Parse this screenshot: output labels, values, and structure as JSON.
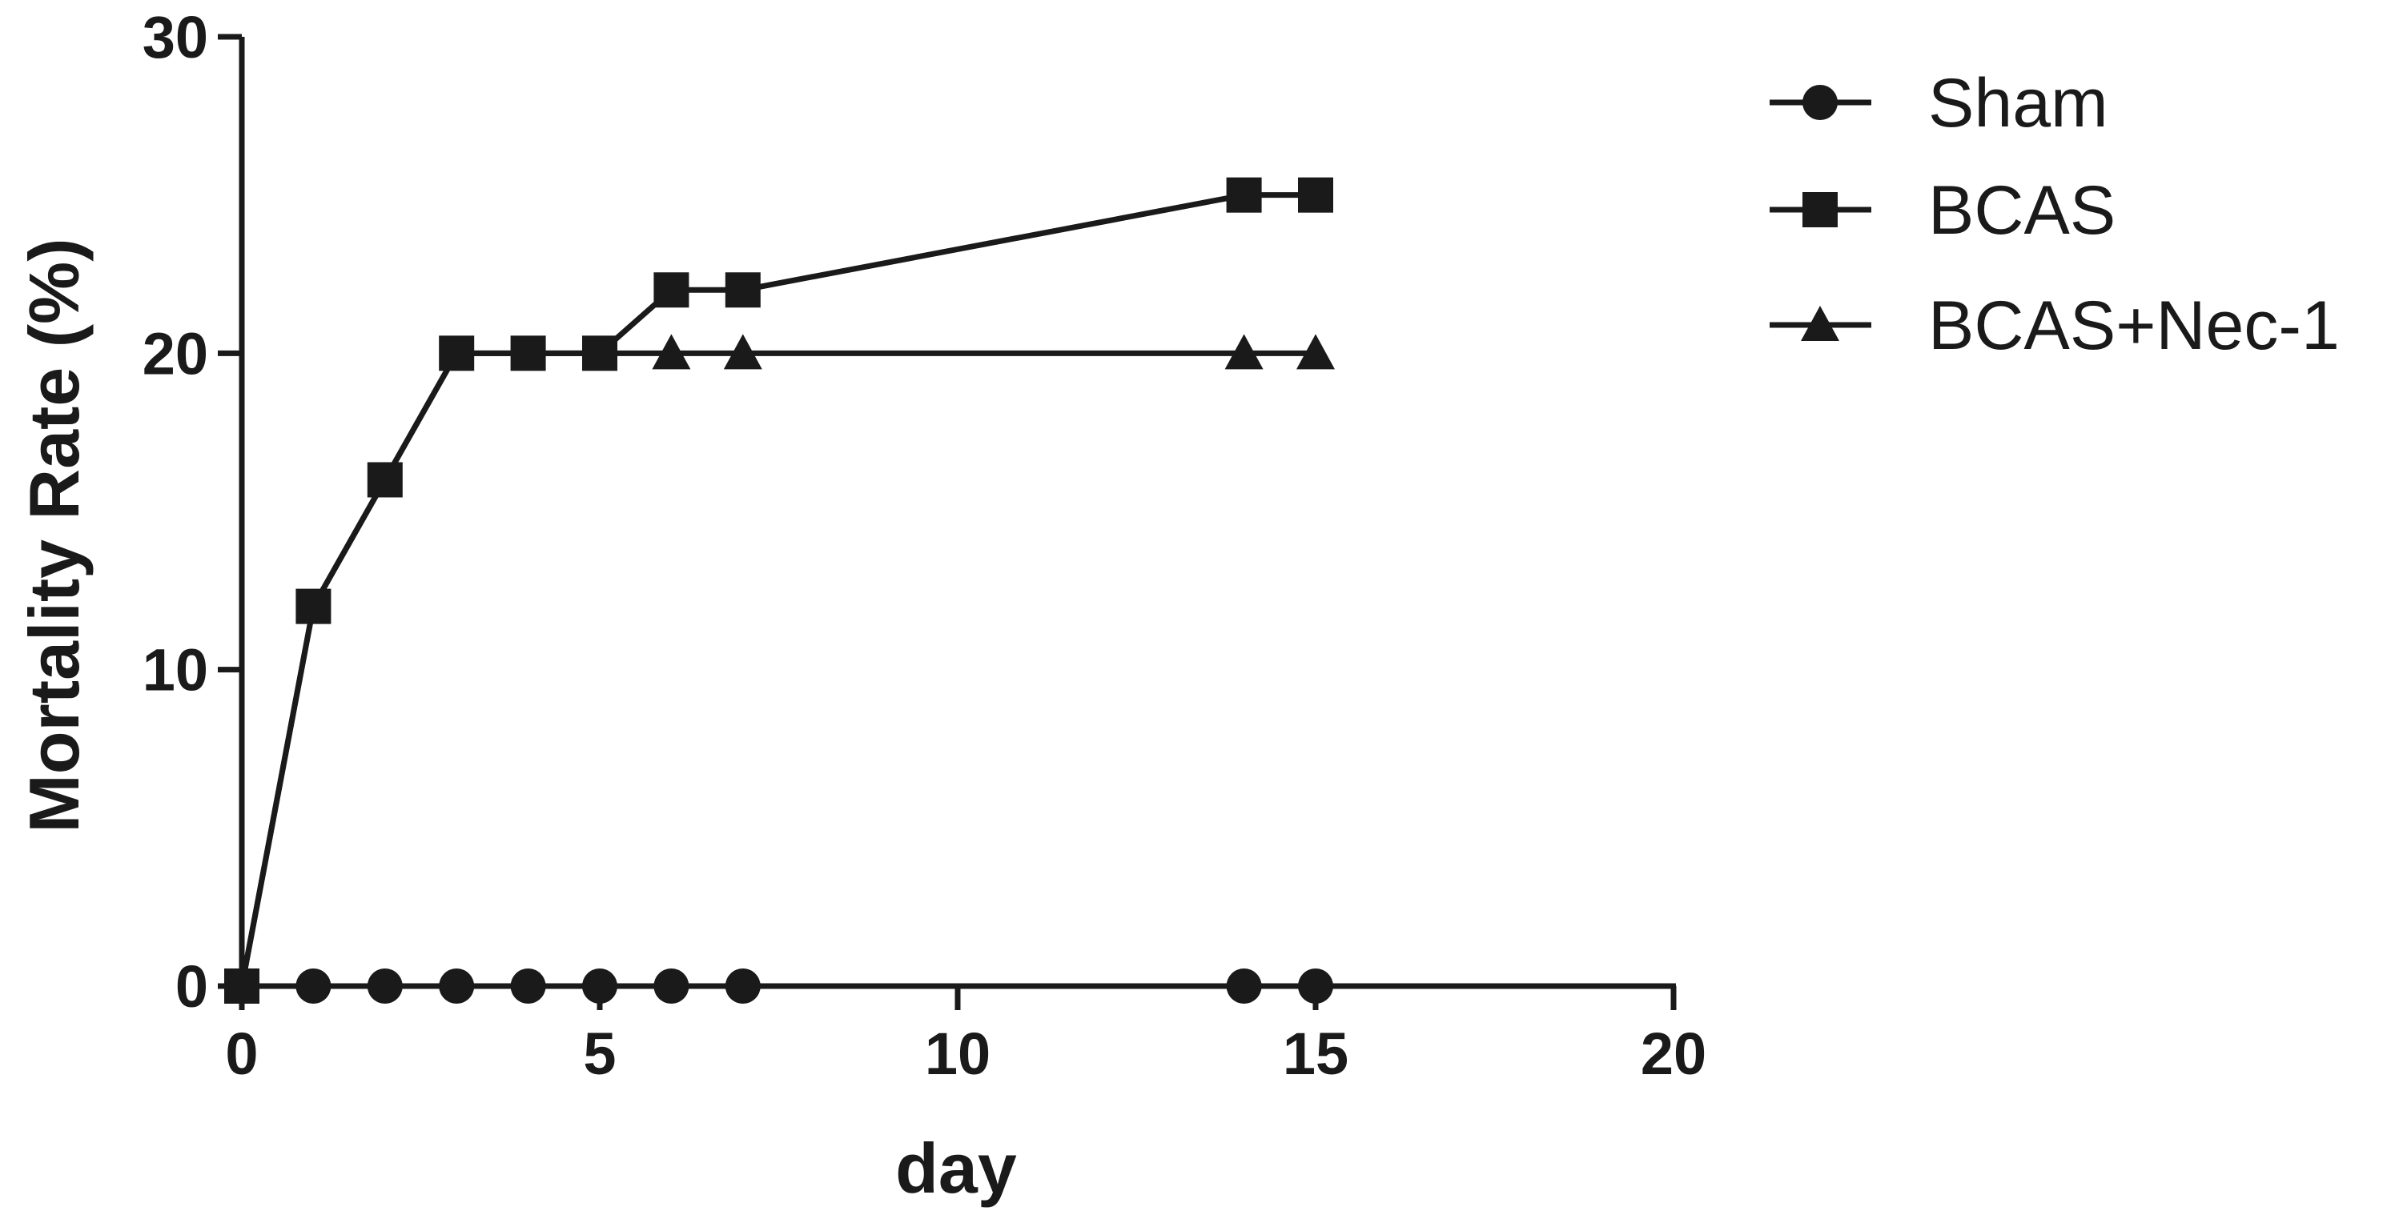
{
  "chart_data": {
    "type": "line",
    "title": "",
    "xlabel": "day",
    "ylabel": "Mortality Rate (%)",
    "xlim": [
      0,
      20
    ],
    "ylim": [
      0,
      30
    ],
    "xticks": [
      "0",
      "5",
      "10",
      "15",
      "20"
    ],
    "yticks": [
      "0",
      "10",
      "20",
      "30"
    ],
    "grid": false,
    "legend_position": "right",
    "color": "#1a1a1a",
    "series": [
      {
        "name": "Sham",
        "marker": "circle",
        "x": [
          0,
          1,
          2,
          3,
          4,
          5,
          6,
          7,
          14,
          15
        ],
        "y": [
          0,
          0,
          0,
          0,
          0,
          0,
          0,
          0,
          0,
          0
        ]
      },
      {
        "name": "BCAS",
        "marker": "square",
        "x": [
          0,
          1,
          2,
          3,
          4,
          5,
          6,
          7,
          14,
          15
        ],
        "y": [
          0,
          12,
          16,
          20,
          20,
          20,
          22,
          22,
          25,
          25
        ]
      },
      {
        "name": "BCAS+Nec-1",
        "marker": "triangle",
        "x": [
          0,
          1,
          2,
          3,
          4,
          5,
          6,
          7,
          14,
          15
        ],
        "y": [
          0,
          12,
          16,
          20,
          20,
          20,
          20,
          20,
          20,
          20
        ]
      }
    ]
  }
}
